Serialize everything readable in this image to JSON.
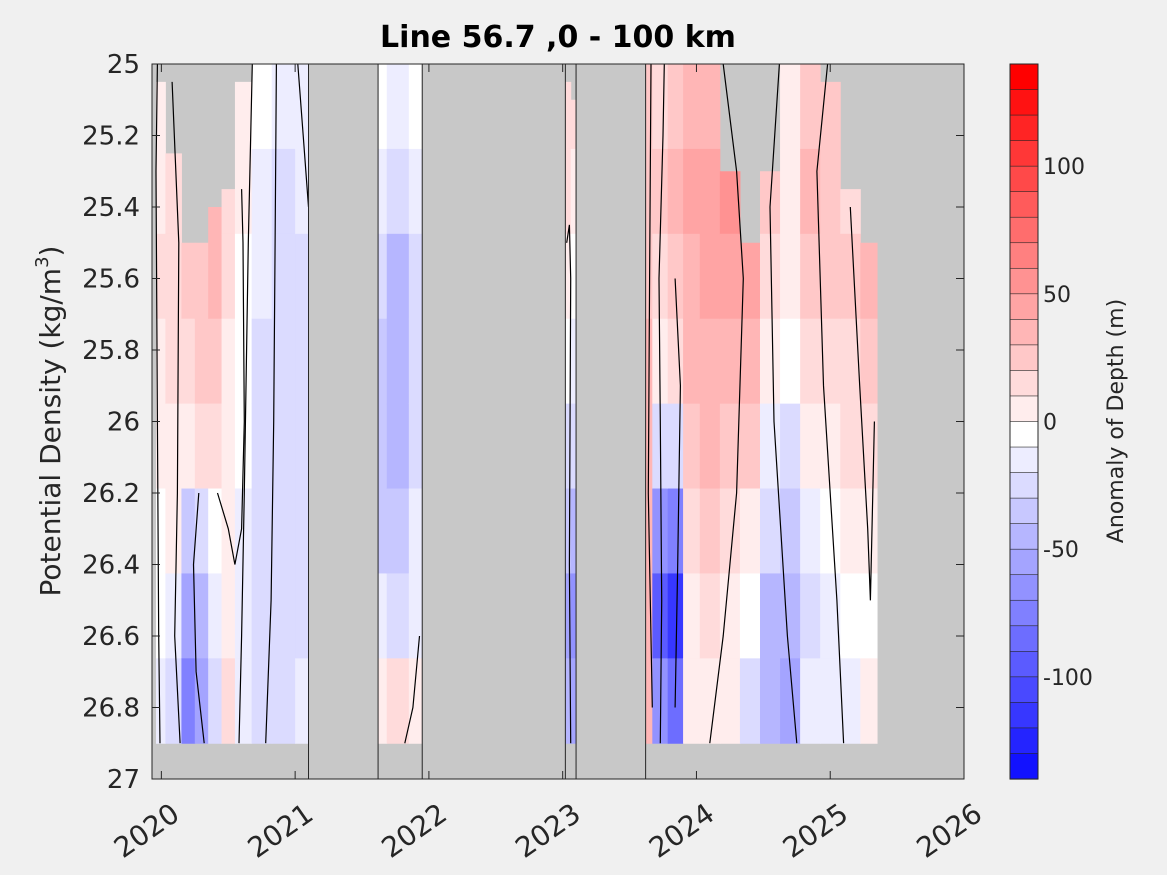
{
  "chart_data": {
    "type": "heatmap",
    "title": "Line 56.7 ,0 - 100 km",
    "ylabel_main": "Potential Density (kg/m",
    "ylabel_sup": "3",
    "ylabel_close": ")",
    "colorbar_label": "Anomaly of Depth (m)",
    "xlim": [
      2019.93,
      2026.0
    ],
    "ylim": [
      25.0,
      27.0
    ],
    "y_reversed": true,
    "x_ticks": [
      2020,
      2021,
      2022,
      2023,
      2024,
      2025,
      2026
    ],
    "x_tick_labels": [
      "2020",
      "2021",
      "2022",
      "2023",
      "2024",
      "2025",
      "2026"
    ],
    "y_ticks": [
      25.0,
      25.2,
      25.4,
      25.6,
      25.8,
      26.0,
      26.2,
      26.4,
      26.6,
      26.8,
      27.0
    ],
    "y_tick_labels": [
      "25",
      "25.2",
      "25.4",
      "25.6",
      "25.8",
      "26",
      "26.2",
      "26.4",
      "26.6",
      "26.8",
      "27"
    ],
    "color_range": [
      -140,
      140
    ],
    "color_step": 10,
    "colorbar_ticks": [
      100,
      50,
      0,
      -50,
      -100
    ],
    "colorbar_tick_labels": [
      "100",
      "50",
      "0",
      "-50",
      "-100"
    ],
    "no_data_color": "#c8c8c8",
    "positive_color": "#ff0000",
    "negative_color": "#0000ff",
    "zero_color": "#ffffff",
    "data_bands": [
      {
        "x_start": 2019.96,
        "x_end": 2021.1,
        "density_bottom": 26.9,
        "columns": [
          {
            "x": 2019.96,
            "top": 25.05,
            "values": [
              5,
              10,
              15,
              10,
              5,
              0,
              -5,
              -10
            ]
          },
          {
            "x": 2020.1,
            "top": 25.25,
            "values": [
              15,
              20,
              20,
              15,
              10,
              5,
              -10,
              -20
            ]
          },
          {
            "x": 2020.2,
            "top": 25.5,
            "values": [
              25,
              30,
              25,
              20,
              5,
              -30,
              -55,
              -70
            ]
          },
          {
            "x": 2020.3,
            "top": 25.5,
            "values": [
              30,
              35,
              30,
              25,
              15,
              -25,
              -45,
              -50
            ]
          },
          {
            "x": 2020.4,
            "top": 25.4,
            "values": [
              35,
              40,
              35,
              30,
              20,
              -5,
              -15,
              -20
            ]
          },
          {
            "x": 2020.5,
            "top": 25.35,
            "values": [
              20,
              20,
              15,
              10,
              5,
              5,
              10,
              15
            ]
          },
          {
            "x": 2020.6,
            "top": 25.05,
            "values": [
              10,
              5,
              0,
              0,
              -5,
              -10,
              -15,
              -10
            ]
          },
          {
            "x": 2020.75,
            "top": 25.0,
            "values": [
              -5,
              -10,
              -15,
              -20,
              -20,
              -25,
              -25,
              -25
            ]
          },
          {
            "x": 2020.9,
            "top": 25.0,
            "values": [
              -15,
              -20,
              -20,
              -20,
              -25,
              -25,
              -25,
              -25
            ]
          },
          {
            "x": 2021.1,
            "top": 25.0,
            "values": [
              -10,
              -15,
              -20,
              -20,
              -20,
              -20,
              -20,
              -15
            ]
          }
        ]
      },
      {
        "x_start": 2021.62,
        "x_end": 2021.95,
        "density_bottom": 26.9,
        "columns": [
          {
            "x": 2021.62,
            "top": 25.0,
            "values": [
              -5,
              -10,
              -20,
              -30,
              -35,
              -30,
              -15,
              10
            ]
          },
          {
            "x": 2021.75,
            "top": 25.0,
            "values": [
              -15,
              -25,
              -40,
              -45,
              -40,
              -30,
              -20,
              20
            ]
          },
          {
            "x": 2021.95,
            "top": 25.0,
            "values": [
              -5,
              -15,
              -20,
              -25,
              -20,
              -15,
              -10,
              5
            ]
          }
        ]
      },
      {
        "x_start": 2023.02,
        "x_end": 2023.1,
        "density_bottom": 26.9,
        "columns": [
          {
            "x": 2023.02,
            "top": 25.05,
            "values": [
              20,
              15,
              5,
              -5,
              -20,
              -35,
              -55,
              -45
            ]
          },
          {
            "x": 2023.1,
            "top": 25.1,
            "values": [
              15,
              10,
              0,
              -10,
              -25,
              -40,
              -60,
              -50
            ]
          }
        ]
      },
      {
        "x_start": 2023.62,
        "x_end": 2025.35,
        "density_bottom": 26.9,
        "columns": [
          {
            "x": 2023.62,
            "top": 25.0,
            "values": [
              25,
              30,
              30,
              35,
              40,
              40,
              40,
              35
            ]
          },
          {
            "x": 2023.72,
            "top": 25.0,
            "values": [
              20,
              25,
              20,
              10,
              -20,
              -60,
              -90,
              -60
            ]
          },
          {
            "x": 2023.85,
            "top": 25.0,
            "values": [
              25,
              35,
              30,
              20,
              -20,
              -70,
              -110,
              -80
            ]
          },
          {
            "x": 2023.95,
            "top": 25.0,
            "values": [
              35,
              45,
              40,
              35,
              30,
              20,
              10,
              10
            ]
          },
          {
            "x": 2024.1,
            "top": 25.0,
            "values": [
              40,
              45,
              45,
              40,
              35,
              30,
              20,
              10
            ]
          },
          {
            "x": 2024.25,
            "top": 25.3,
            "values": [
              50,
              55,
              50,
              40,
              30,
              20,
              10,
              5
            ]
          },
          {
            "x": 2024.4,
            "top": 25.5,
            "values": [
              45,
              50,
              45,
              35,
              25,
              10,
              -5,
              -20
            ]
          },
          {
            "x": 2024.55,
            "top": 25.3,
            "values": [
              20,
              25,
              20,
              10,
              -10,
              -25,
              -40,
              -45
            ]
          },
          {
            "x": 2024.7,
            "top": 25.0,
            "values": [
              10,
              10,
              5,
              -5,
              -20,
              -35,
              -45,
              -50
            ]
          },
          {
            "x": 2024.85,
            "top": 25.0,
            "values": [
              30,
              35,
              30,
              20,
              10,
              -10,
              -20,
              -15
            ]
          },
          {
            "x": 2025.0,
            "top": 25.05,
            "values": [
              25,
              30,
              25,
              15,
              5,
              -5,
              -10,
              -15
            ]
          },
          {
            "x": 2025.15,
            "top": 25.35,
            "values": [
              15,
              20,
              25,
              20,
              15,
              5,
              -5,
              -10
            ]
          },
          {
            "x": 2025.3,
            "top": 25.5,
            "values": [
              30,
              45,
              40,
              30,
              20,
              5,
              0,
              5
            ]
          }
        ]
      }
    ],
    "zero_contours": [
      [
        [
          2019.97,
          25.0
        ],
        [
          2019.96,
          25.3
        ],
        [
          2019.97,
          26.0
        ],
        [
          2019.98,
          26.6
        ],
        [
          2019.99,
          26.9
        ]
      ],
      [
        [
          2020.08,
          25.05
        ],
        [
          2020.13,
          25.5
        ],
        [
          2020.12,
          26.2
        ],
        [
          2020.1,
          26.6
        ],
        [
          2020.14,
          26.9
        ]
      ],
      [
        [
          2020.28,
          26.2
        ],
        [
          2020.24,
          26.4
        ],
        [
          2020.26,
          26.7
        ],
        [
          2020.32,
          26.9
        ]
      ],
      [
        [
          2020.42,
          26.2
        ],
        [
          2020.5,
          26.3
        ],
        [
          2020.55,
          26.4
        ],
        [
          2020.6,
          26.3
        ],
        [
          2020.62,
          26.0
        ],
        [
          2020.61,
          25.5
        ],
        [
          2020.6,
          25.35
        ]
      ],
      [
        [
          2020.68,
          25.0
        ],
        [
          2020.65,
          25.5
        ],
        [
          2020.62,
          26.2
        ],
        [
          2020.6,
          26.6
        ],
        [
          2020.58,
          26.9
        ]
      ],
      [
        [
          2020.86,
          25.0
        ],
        [
          2020.85,
          25.5
        ],
        [
          2020.84,
          26.0
        ],
        [
          2020.82,
          26.5
        ],
        [
          2020.78,
          26.9
        ]
      ],
      [
        [
          2021.02,
          25.0
        ],
        [
          2021.06,
          25.2
        ],
        [
          2021.1,
          25.4
        ]
      ],
      [
        [
          2021.93,
          26.6
        ],
        [
          2021.88,
          26.8
        ],
        [
          2021.82,
          26.9
        ]
      ],
      [
        [
          2023.03,
          25.5
        ],
        [
          2023.05,
          25.45
        ],
        [
          2023.06,
          25.6
        ],
        [
          2023.05,
          26.4
        ],
        [
          2023.06,
          26.9
        ]
      ],
      [
        [
          2023.66,
          25.0
        ],
        [
          2023.65,
          25.6
        ],
        [
          2023.64,
          26.2
        ],
        [
          2023.67,
          26.8
        ]
      ],
      [
        [
          2023.76,
          25.0
        ],
        [
          2023.75,
          25.2
        ],
        [
          2023.72,
          25.6
        ],
        [
          2023.73,
          26.0
        ],
        [
          2023.74,
          26.5
        ],
        [
          2023.73,
          26.9
        ]
      ],
      [
        [
          2023.84,
          25.6
        ],
        [
          2023.88,
          25.9
        ],
        [
          2023.86,
          26.4
        ],
        [
          2023.84,
          26.8
        ]
      ],
      [
        [
          2024.2,
          25.0
        ],
        [
          2024.3,
          25.3
        ],
        [
          2024.35,
          25.6
        ],
        [
          2024.3,
          26.2
        ],
        [
          2024.2,
          26.6
        ],
        [
          2024.1,
          26.9
        ]
      ],
      [
        [
          2024.62,
          25.0
        ],
        [
          2024.55,
          25.4
        ],
        [
          2024.58,
          26.0
        ],
        [
          2024.68,
          26.6
        ],
        [
          2024.75,
          26.9
        ]
      ],
      [
        [
          2024.98,
          25.0
        ],
        [
          2024.9,
          25.3
        ],
        [
          2024.95,
          25.9
        ],
        [
          2025.05,
          26.5
        ],
        [
          2025.1,
          26.9
        ]
      ],
      [
        [
          2025.15,
          25.4
        ],
        [
          2025.22,
          25.9
        ],
        [
          2025.28,
          26.3
        ],
        [
          2025.3,
          26.5
        ],
        [
          2025.33,
          26.0
        ]
      ]
    ],
    "gap_ranges": [
      [
        2021.1,
        2021.62
      ],
      [
        2021.95,
        2023.02
      ],
      [
        2023.1,
        2023.62
      ]
    ]
  }
}
